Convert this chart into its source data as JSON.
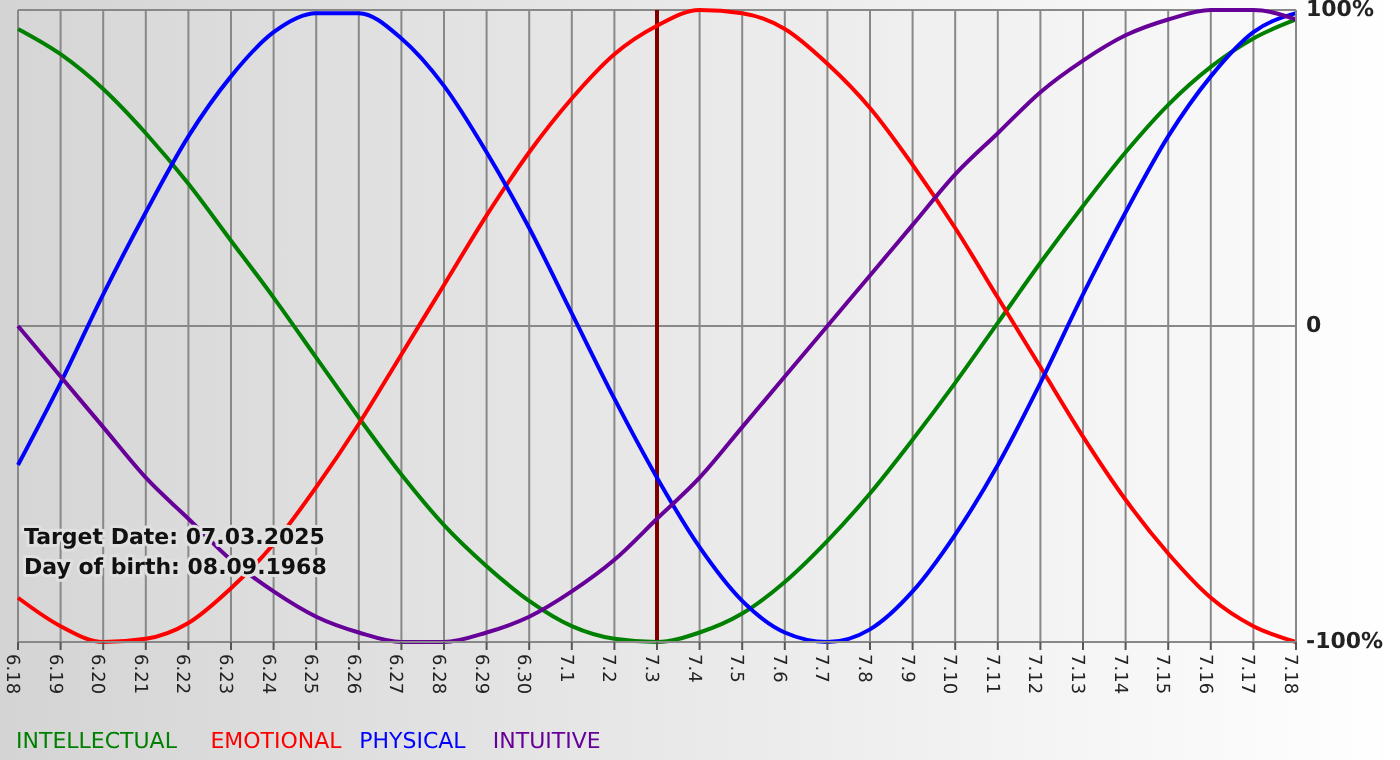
{
  "chart_data": {
    "type": "line",
    "categories": [
      "6.18",
      "6.19",
      "6.20",
      "6.21",
      "6.22",
      "6.23",
      "6.24",
      "6.25",
      "6.26",
      "6.27",
      "6.28",
      "6.29",
      "6.30",
      "7.1",
      "7.2",
      "7.3",
      "7.4",
      "7.5",
      "7.6",
      "7.7",
      "7.8",
      "7.9",
      "7.10",
      "7.11",
      "7.12",
      "7.13",
      "7.14",
      "7.15",
      "7.16",
      "7.17",
      "7.18"
    ],
    "series": [
      {
        "name": "INTELLECTUAL",
        "color": "#008000",
        "values": [
          94,
          86,
          75,
          61,
          45,
          27,
          9,
          -10,
          -29,
          -47,
          -63,
          -76,
          -87,
          -95,
          -99,
          -100,
          -97,
          -91,
          -81,
          -68,
          -53,
          -36,
          -18,
          1,
          20,
          38,
          55,
          70,
          82,
          91,
          97
        ]
      },
      {
        "name": "EMOTIONAL",
        "color": "#ff0000",
        "values": [
          -86,
          -95,
          -100,
          -99,
          -94,
          -83,
          -69,
          -51,
          -31,
          -9,
          13,
          35,
          55,
          72,
          86,
          95,
          100,
          99,
          94,
          83,
          69,
          51,
          31,
          9,
          -13,
          -35,
          -55,
          -72,
          -86,
          -95,
          -100
        ]
      },
      {
        "name": "PHYSICAL",
        "color": "#0000ff",
        "values": [
          -44,
          -18,
          10,
          36,
          60,
          79,
          93,
          99,
          99,
          91,
          76,
          55,
          31,
          4,
          -23,
          -48,
          -70,
          -87,
          -97,
          -100,
          -96,
          -84,
          -66,
          -44,
          -18,
          10,
          36,
          60,
          79,
          93,
          99
        ]
      },
      {
        "name": "INTUITIVE",
        "color": "#660099",
        "values": [
          0,
          -16,
          -32,
          -48,
          -61,
          -74,
          -84,
          -92,
          -97,
          -100,
          -100,
          -97,
          -92,
          -84,
          -74,
          -61,
          -48,
          -32,
          -16,
          0,
          16,
          32,
          48,
          61,
          74,
          84,
          92,
          97,
          100,
          100,
          97
        ]
      }
    ],
    "ylim": [
      -100,
      100
    ],
    "yticks": [
      {
        "value": 100,
        "label": "100%"
      },
      0,
      {
        "value": -100,
        "label": "-100%"
      }
    ],
    "grid": true,
    "legend": "bottom",
    "marker": "none",
    "line_style": "solid",
    "ref_lines": [
      {
        "axis": "x",
        "value": "7.3",
        "color": "#800000"
      }
    ],
    "annotations": [
      "Target Date: 07.03.2025",
      "Day of birth: 08.09.1968"
    ]
  }
}
